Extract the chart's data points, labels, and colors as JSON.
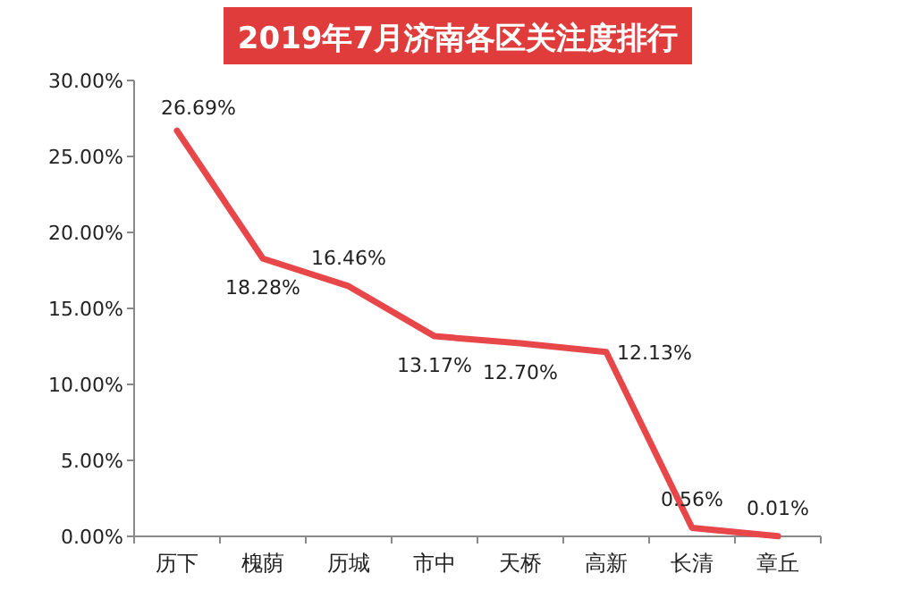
{
  "chart_data": {
    "type": "line",
    "title": "2019年7月济南各区关注度排行",
    "categories": [
      "历下",
      "槐荫",
      "历城",
      "市中",
      "天桥",
      "高新",
      "长清",
      "章丘"
    ],
    "series": [
      {
        "color": "#e8474a",
        "values": [
          26.69,
          18.28,
          16.46,
          13.17,
          12.7,
          12.13,
          0.56,
          0.01
        ],
        "value_labels": [
          "26.69%",
          "18.28%",
          "16.46%",
          "13.17%",
          "12.70%",
          "12.13%",
          "0.56%",
          "0.01%"
        ]
      }
    ],
    "ylim": [
      0,
      30
    ],
    "yticks": [
      {
        "value": 0,
        "label": "0.00%"
      },
      {
        "value": 5,
        "label": "5.00%"
      },
      {
        "value": 10,
        "label": "10.00%"
      },
      {
        "value": 15,
        "label": "15.00%"
      },
      {
        "value": 20,
        "label": "20.00%"
      },
      {
        "value": 25,
        "label": "25.00%"
      },
      {
        "value": 30,
        "label": "30.00%"
      }
    ],
    "grid": false,
    "marker": "none",
    "line_style": "solid"
  }
}
